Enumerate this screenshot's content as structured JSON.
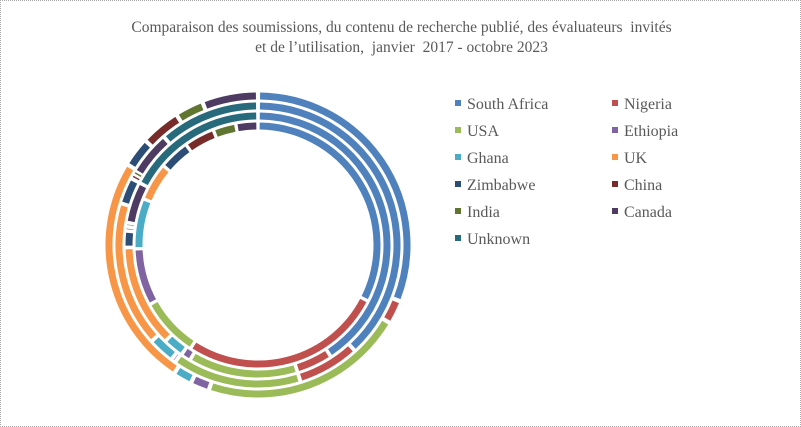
{
  "chart_data": {
    "type": "pie",
    "variant": "multi-ring donut",
    "title": "Comparaison des soumissions, du contenu de recherche publié, des évaluateurs  invités et de l’utilisation,  janvier  2017 - octobre 2023",
    "title_lines": [
      "Comparaison des soumissions, du contenu de recherche publié, des évaluateurs  invités",
      "et de l’utilisation,  janvier  2017 - octobre 2023"
    ],
    "legend_position": "right",
    "categories": [
      "South Africa",
      "Nigeria",
      "USA",
      "Ethiopia",
      "Ghana",
      "UK",
      "Zimbabwe",
      "China",
      "India",
      "Canada",
      "Unknown"
    ],
    "colors": [
      "#4F81BD",
      "#C0504D",
      "#9BBB59",
      "#8064A2",
      "#4BACC6",
      "#F79646",
      "#2C4D75",
      "#772C2A",
      "#5F7530",
      "#4D3B62",
      "#276A7C"
    ],
    "rings_outer_to_inner": [
      {
        "values_percent": [
          31.0,
          2.5,
          21.7,
          2.0,
          2.0,
          24.6,
          3.1,
          4.2,
          3.0,
          5.9,
          0.0
        ]
      },
      {
        "values_percent": [
          38.2,
          7.0,
          14.6,
          0.5,
          3.0,
          16.4,
          3.0,
          0.6,
          0.3,
          5.0,
          11.4
        ]
      },
      {
        "values_percent": [
          40.8,
          4.4,
          13.3,
          1.2,
          2.5,
          12.5,
          2.0,
          0.5,
          0.5,
          5.0,
          17.3
        ]
      },
      {
        "values_percent": [
          32.5,
          26.7,
          7.8,
          7.5,
          6.6,
          5.0,
          4.0,
          4.0,
          3.0,
          2.9,
          0.0
        ]
      }
    ]
  }
}
